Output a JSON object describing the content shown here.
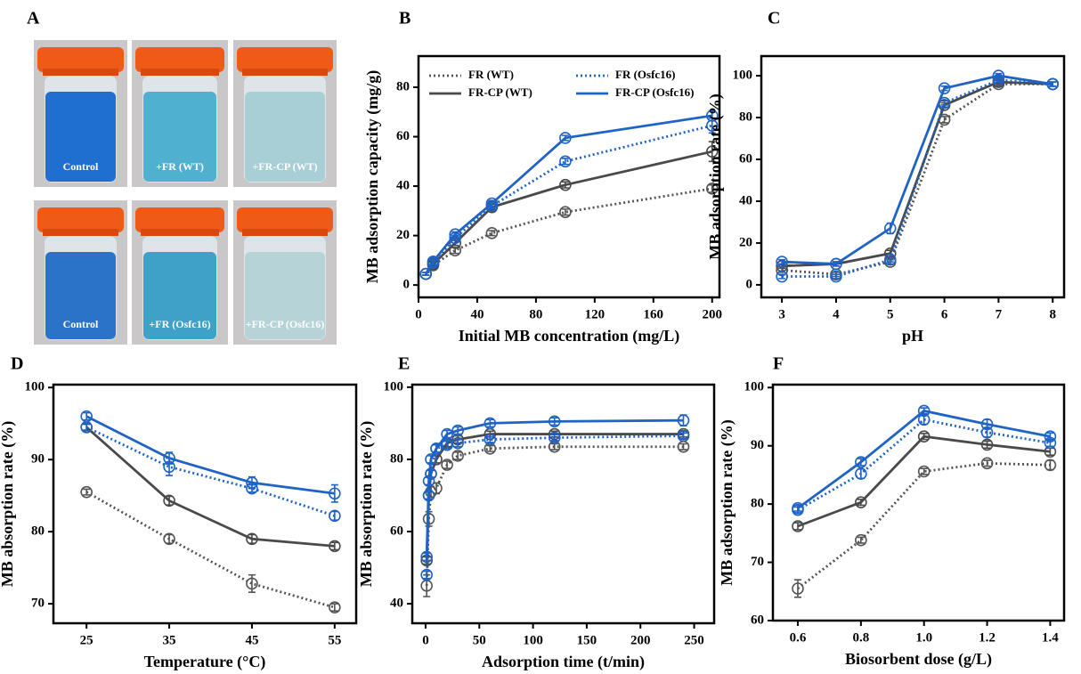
{
  "photos": {
    "panel": "A",
    "captions": [
      "Control",
      "+FR (WT)",
      "+FR-CP (WT)",
      "Control",
      "+FR (Osfc16)",
      "+FR-CP (Osfc16)"
    ]
  },
  "chart_data": [
    {
      "type": "line",
      "panel": "B",
      "x_label": "Initial MB concentration (mg/L)",
      "y_label": "MB adsorption capacity (mg/g)",
      "x": [
        5,
        10,
        25,
        50,
        100,
        200
      ],
      "xlim": [
        0,
        205
      ],
      "xticks": [
        0,
        40,
        80,
        120,
        160,
        200
      ],
      "ylim": [
        -5,
        92.6
      ],
      "yticks": [
        0,
        20,
        40,
        60,
        80
      ],
      "legend": "top",
      "series": [
        {
          "name": "FR (WT)",
          "color": "#555555",
          "dash": "dotted",
          "values": [
            4.5,
            8,
            14,
            21,
            29.5,
            39
          ],
          "errors": [
            0.5,
            0.8,
            1.2,
            1,
            1.2,
            1.5
          ]
        },
        {
          "name": "FR-CP (WT)",
          "color": "#4a4a4a",
          "dash": "solid",
          "values": [
            4.5,
            8.5,
            17,
            31.5,
            40.5,
            54
          ],
          "errors": [
            0.5,
            0.8,
            1,
            1.2,
            1.2,
            4
          ]
        },
        {
          "name": "FR (Osfc16)",
          "color": "#1f63c6",
          "dash": "dotted",
          "values": [
            4.5,
            9,
            19,
            32,
            50,
            64.5
          ],
          "errors": [
            0.5,
            0.8,
            1,
            1.2,
            1.2,
            3
          ]
        },
        {
          "name": "FR-CP (Osfc16)",
          "color": "#1f63c6",
          "dash": "solid",
          "values": [
            4.5,
            9.5,
            20.5,
            33,
            59.5,
            68.5
          ],
          "errors": [
            0.5,
            0.8,
            1,
            1.2,
            1,
            2
          ]
        }
      ]
    },
    {
      "type": "line",
      "panel": "C",
      "x_label": "pH",
      "y_label": "MB adsorption rate (%)",
      "x": [
        3,
        4,
        5,
        6,
        7,
        8
      ],
      "xlim": [
        2.62,
        8.21
      ],
      "xticks": [
        3,
        4,
        5,
        6,
        7,
        8
      ],
      "ylim": [
        -6,
        109.4
      ],
      "yticks": [
        0,
        20,
        40,
        60,
        80,
        100
      ],
      "series": [
        {
          "color": "#555555",
          "dash": "dotted",
          "values": [
            7,
            5,
            11,
            79,
            96,
            96
          ],
          "errors": [
            1,
            1,
            1,
            1.5,
            1,
            1
          ]
        },
        {
          "color": "#4a4a4a",
          "dash": "solid",
          "values": [
            9,
            10,
            15,
            86,
            97,
            96
          ],
          "errors": [
            1,
            1,
            1.5,
            1,
            1,
            1
          ]
        },
        {
          "color": "#1f63c6",
          "dash": "dotted",
          "values": [
            4,
            4,
            12,
            87,
            98,
            96
          ],
          "errors": [
            1,
            1,
            1,
            1,
            1,
            1
          ]
        },
        {
          "color": "#1f63c6",
          "dash": "solid",
          "values": [
            11,
            10,
            27,
            94,
            100,
            96
          ],
          "errors": [
            1,
            1,
            2.5,
            1,
            1,
            1
          ]
        }
      ]
    },
    {
      "type": "line",
      "panel": "D",
      "x_label": "Temperature (°C)",
      "y_label": "MB absorption rate (%)",
      "x": [
        25,
        35,
        45,
        55
      ],
      "xlim": [
        21,
        57.6
      ],
      "xticks": [
        25,
        35,
        45,
        55
      ],
      "ylim": [
        67.3,
        100.4
      ],
      "yticks": [
        70,
        80,
        90,
        100
      ],
      "series": [
        {
          "color": "#555555",
          "dash": "dotted",
          "values": [
            85.5,
            79,
            72.8,
            69.5
          ],
          "errors": [
            0.4,
            0.6,
            1.2,
            0.5
          ]
        },
        {
          "color": "#4a4a4a",
          "dash": "solid",
          "values": [
            94.5,
            84.3,
            79,
            78
          ],
          "errors": [
            0.4,
            0.6,
            0.6,
            0.5
          ]
        },
        {
          "color": "#1f63c6",
          "dash": "dotted",
          "values": [
            94.5,
            89,
            86,
            82.2
          ],
          "errors": [
            0.5,
            1.2,
            0.5,
            0.6
          ]
        },
        {
          "color": "#1f63c6",
          "dash": "solid",
          "values": [
            96,
            90.2,
            86.8,
            85.3
          ],
          "errors": [
            0.5,
            0.8,
            0.8,
            1.2
          ]
        }
      ]
    },
    {
      "type": "line",
      "panel": "E",
      "x_label": "Adsorption time (t/min)",
      "y_label": "MB absorption rate (%)",
      "x": [
        1,
        3,
        5,
        10,
        20,
        30,
        60,
        120,
        240
      ],
      "xlim": [
        -12.4,
        268.6
      ],
      "xticks": [
        0,
        50,
        100,
        150,
        200,
        250
      ],
      "ylim": [
        34.6,
        100.7
      ],
      "yticks": [
        40,
        60,
        80,
        100
      ],
      "series": [
        {
          "color": "#555555",
          "dash": "dotted",
          "values": [
            45,
            63.5,
            71,
            72,
            78.5,
            81,
            83,
            83.5,
            83.5
          ],
          "errors": [
            3,
            2,
            1.5,
            1.5,
            1,
            1,
            0.8,
            0.8,
            0.8
          ]
        },
        {
          "color": "#4a4a4a",
          "dash": "solid",
          "values": [
            52,
            70,
            76,
            80,
            84.5,
            85.5,
            87,
            87,
            87
          ],
          "errors": [
            1,
            1,
            1,
            1,
            1,
            1,
            0.8,
            0.8,
            0.8
          ]
        },
        {
          "color": "#1f63c6",
          "dash": "dotted",
          "values": [
            48,
            70,
            76,
            83,
            84,
            84.5,
            85.5,
            86,
            86.5
          ],
          "errors": [
            1,
            1,
            1,
            1,
            1,
            1,
            0.8,
            0.8,
            0.8
          ]
        },
        {
          "color": "#1f63c6",
          "dash": "solid",
          "values": [
            53,
            74,
            80,
            83,
            87,
            88,
            90,
            90.5,
            90.8
          ],
          "errors": [
            1,
            1,
            1,
            1,
            1,
            1,
            1,
            1,
            1.5
          ]
        }
      ]
    },
    {
      "type": "line",
      "panel": "F",
      "x_label": "Biosorbent dose (g/L)",
      "y_label": "MB adsorption rate (%)",
      "x": [
        0.6,
        0.8,
        1.0,
        1.2,
        1.4
      ],
      "xlim": [
        0.521,
        1.444
      ],
      "xticks": [
        0.6,
        0.8,
        {
          "value": 1.0,
          "label": "1.0"
        },
        1.2,
        1.4
      ],
      "ylim": [
        60,
        100.5
      ],
      "yticks": [
        60,
        70,
        80,
        90,
        100
      ],
      "series": [
        {
          "color": "#555555",
          "dash": "dotted",
          "values": [
            65.5,
            73.8,
            85.6,
            87,
            86.7
          ],
          "errors": [
            1.5,
            0.5,
            0.5,
            0.5,
            0.8
          ]
        },
        {
          "color": "#4a4a4a",
          "dash": "solid",
          "values": [
            76.2,
            80.3,
            91.6,
            90.2,
            89
          ],
          "errors": [
            0.6,
            0.5,
            0.5,
            0.6,
            0.6
          ]
        },
        {
          "color": "#1f63c6",
          "dash": "dotted",
          "values": [
            79,
            85.2,
            94.5,
            92.3,
            90.5
          ],
          "errors": [
            0.5,
            0.8,
            0.8,
            0.8,
            0.6
          ]
        },
        {
          "color": "#1f63c6",
          "dash": "solid",
          "values": [
            79.3,
            87.2,
            96,
            93.7,
            91.6
          ],
          "errors": [
            0.5,
            0.6,
            0.5,
            0.8,
            0.6
          ]
        }
      ]
    }
  ]
}
